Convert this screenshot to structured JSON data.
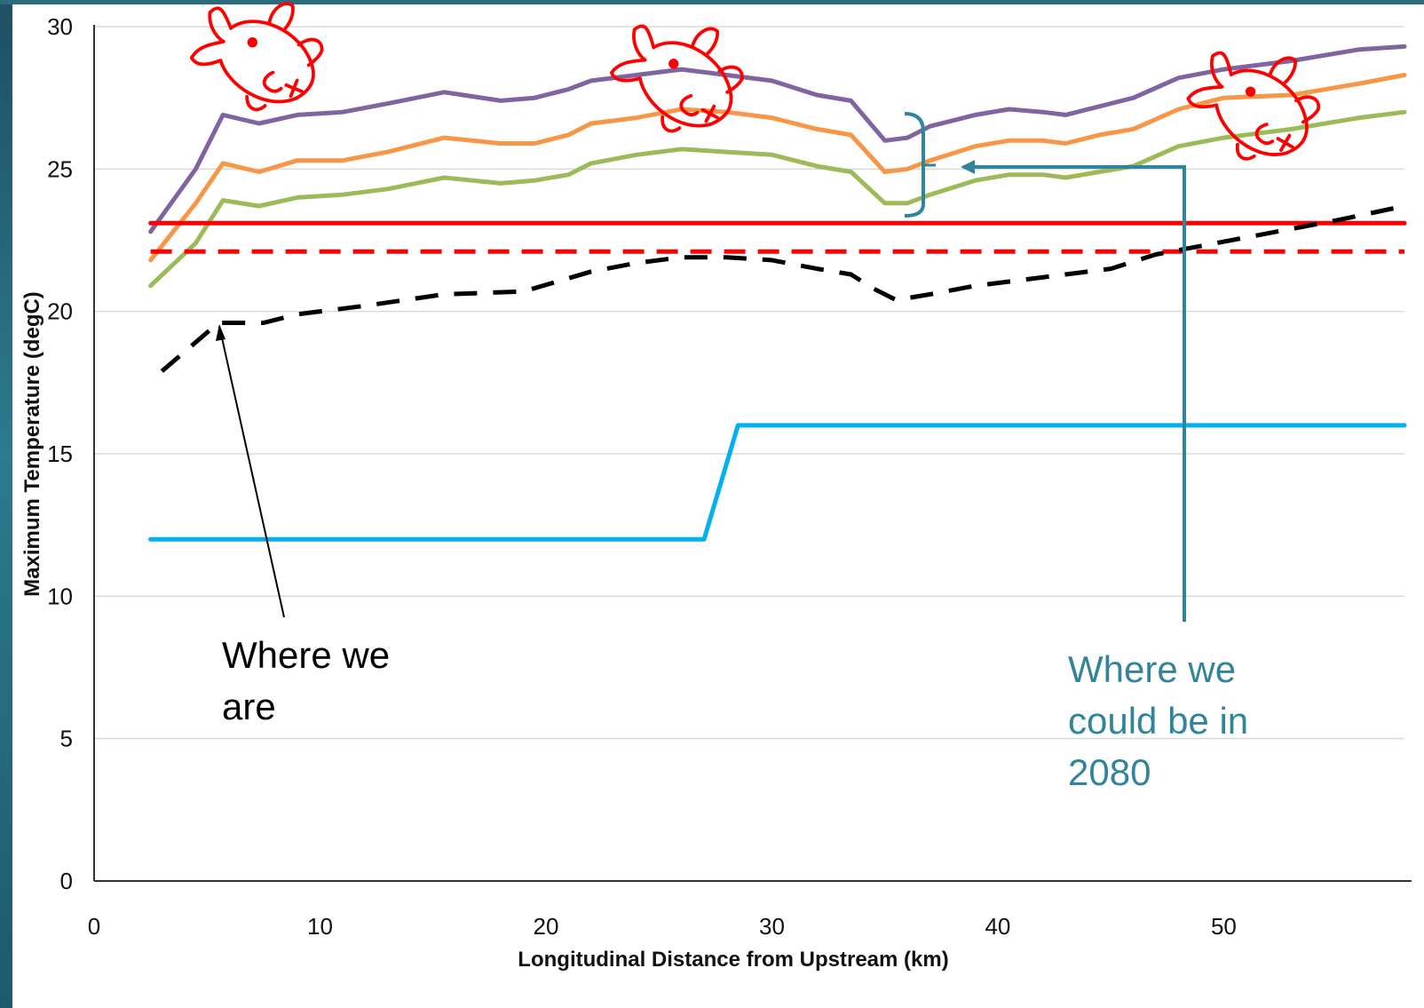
{
  "chart_data": {
    "type": "line",
    "title": "",
    "xlabel": "Longitudinal Distance from Upstream (km)",
    "ylabel": "Maximum Temperature (degC)",
    "xlim": [
      0,
      58
    ],
    "ylim": [
      0,
      30
    ],
    "x_ticks": [
      "0",
      "10",
      "20",
      "30",
      "40",
      "50"
    ],
    "y_ticks": [
      "0",
      "5",
      "10",
      "15",
      "20",
      "25",
      "30"
    ],
    "grid": "horizontal",
    "colors": {
      "purple": "#8064a2",
      "orange": "#f79646",
      "green": "#9bbb59",
      "red": "#ff0000",
      "black": "#000000",
      "blue": "#00b0f0",
      "annotation_teal": "#31849b",
      "fish": "#ff0000"
    },
    "series": [
      {
        "color": "purple",
        "dash": "solid",
        "x": [
          2.5,
          4.5,
          5.7,
          7.3,
          9,
          11,
          13,
          15.5,
          18,
          19.5,
          21,
          22,
          24,
          26,
          28,
          30,
          32,
          33.5,
          35,
          36,
          37,
          39,
          40.5,
          42,
          43,
          44.5,
          46,
          48,
          50,
          53,
          56,
          58
        ],
        "y": [
          22.8,
          25,
          26.9,
          26.6,
          26.9,
          27.0,
          27.3,
          27.7,
          27.4,
          27.5,
          27.8,
          28.1,
          28.3,
          28.5,
          28.3,
          28.1,
          27.6,
          27.4,
          26.0,
          26.1,
          26.5,
          26.9,
          27.1,
          27.0,
          26.9,
          27.2,
          27.5,
          28.2,
          28.5,
          28.8,
          29.2,
          29.3
        ]
      },
      {
        "color": "orange",
        "dash": "solid",
        "x": [
          2.5,
          4.5,
          5.7,
          7.3,
          9,
          11,
          13,
          15.5,
          18,
          19.5,
          21,
          22,
          24,
          26,
          28,
          30,
          32,
          33.5,
          35,
          36,
          37,
          39,
          40.5,
          42,
          43,
          44.5,
          46,
          48,
          50,
          53,
          56,
          58
        ],
        "y": [
          21.8,
          23.8,
          25.2,
          24.9,
          25.3,
          25.3,
          25.6,
          26.1,
          25.9,
          25.9,
          26.2,
          26.6,
          26.8,
          27.1,
          27.0,
          26.8,
          26.4,
          26.2,
          24.9,
          25.0,
          25.3,
          25.8,
          26.0,
          26.0,
          25.9,
          26.2,
          26.4,
          27.1,
          27.5,
          27.6,
          28.0,
          28.3
        ]
      },
      {
        "color": "green",
        "dash": "solid",
        "x": [
          2.5,
          4.5,
          5.7,
          7.3,
          9,
          11,
          13,
          15.5,
          18,
          19.5,
          21,
          22,
          24,
          26,
          28,
          30,
          32,
          33.5,
          35,
          36,
          37,
          39,
          40.5,
          42,
          43,
          44.5,
          46,
          48,
          50,
          53,
          56,
          58
        ],
        "y": [
          20.9,
          22.4,
          23.9,
          23.7,
          24.0,
          24.1,
          24.3,
          24.7,
          24.5,
          24.6,
          24.8,
          25.2,
          25.5,
          25.7,
          25.6,
          25.5,
          25.1,
          24.9,
          23.8,
          23.8,
          24.1,
          24.6,
          24.8,
          24.8,
          24.7,
          24.9,
          25.1,
          25.8,
          26.1,
          26.4,
          26.8,
          27.0
        ]
      },
      {
        "color": "red",
        "dash": "solid",
        "x": [
          2.5,
          58
        ],
        "y": [
          23.1,
          23.1
        ]
      },
      {
        "color": "red",
        "dash": "dashed",
        "x": [
          2.5,
          58
        ],
        "y": [
          22.1,
          22.1
        ]
      },
      {
        "color": "black",
        "dash": "dashed",
        "x": [
          3,
          5.5,
          7.5,
          9,
          12,
          15.5,
          19,
          22,
          24,
          26,
          28,
          30,
          32,
          33.5,
          34.5,
          35.5,
          37,
          39,
          41,
          43,
          45,
          47,
          49,
          51,
          53,
          55,
          58
        ],
        "y": [
          17.9,
          19.6,
          19.6,
          19.9,
          20.2,
          20.6,
          20.7,
          21.4,
          21.7,
          21.9,
          21.9,
          21.8,
          21.5,
          21.3,
          20.8,
          20.4,
          20.6,
          20.9,
          21.1,
          21.3,
          21.5,
          22.0,
          22.3,
          22.6,
          22.9,
          23.2,
          23.7
        ]
      },
      {
        "color": "blue",
        "dash": "solid",
        "x": [
          2.5,
          27,
          28.5,
          58
        ],
        "y": [
          12.0,
          12.0,
          16.0,
          16.0
        ]
      }
    ],
    "annotations": {
      "where_we_are": [
        "Where we",
        "are"
      ],
      "where_2080": [
        "Where we",
        "could be in",
        "2080"
      ]
    }
  }
}
